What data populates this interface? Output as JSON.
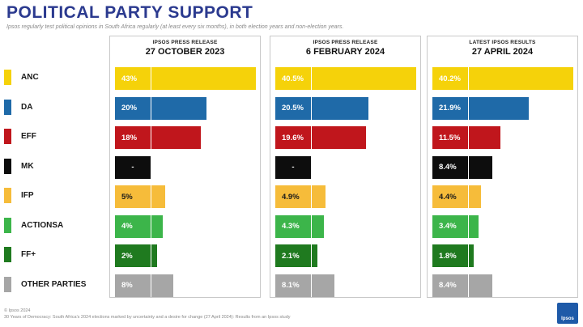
{
  "title": "POLITICAL PARTY SUPPORT",
  "subtitle": "Ipsos regularly test political opinions in South Africa regularly (at least every six months), in both election years and non-election years.",
  "footer": {
    "copyright": "© Ipsos 2024",
    "source": "30 Years of Democracy: South Africa's 2024 elections marked by uncertainty and a desire for change (27 April 2024): Results from an Ipsos study"
  },
  "logo_text": "Ipsos",
  "colors": {
    "ANC": "#f5d20a",
    "DA": "#1f6aa8",
    "EFF": "#c0161c",
    "MK": "#0d0d0d",
    "IFP": "#f6bc3a",
    "ACTIONSA": "#3cb54a",
    "FF+": "#1f7a1f",
    "OTHER PARTIES": "#a6a6a6"
  },
  "chart_data": {
    "type": "bar",
    "categories": [
      "ANC",
      "DA",
      "EFF",
      "MK",
      "IFP",
      "ACTIONSA",
      "FF+",
      "OTHER PARTIES"
    ],
    "series": [
      {
        "kicker": "IPSOS PRESS RELEASE",
        "name": "27 OCTOBER 2023",
        "values": [
          43,
          20,
          18,
          null,
          5,
          4,
          2,
          8
        ],
        "labels": [
          "43%",
          "20%",
          "18%",
          "-",
          "5%",
          "4%",
          "2%",
          "8%"
        ]
      },
      {
        "kicker": "IPSOS PRESS RELEASE",
        "name": "6 FEBRUARY 2024",
        "values": [
          40.5,
          20.5,
          19.6,
          null,
          4.9,
          4.3,
          2.1,
          8.1
        ],
        "labels": [
          "40.5%",
          "20.5%",
          "19.6%",
          "-",
          "4.9%",
          "4.3%",
          "2.1%",
          "8.1%"
        ]
      },
      {
        "kicker": "LATEST IPSOS RESULTS",
        "name": "27 APRIL 2024",
        "values": [
          40.2,
          21.9,
          11.5,
          8.4,
          4.4,
          3.4,
          1.8,
          8.4
        ],
        "labels": [
          "40.2%",
          "21.9%",
          "11.5%",
          "8.4%",
          "4.4%",
          "3.4%",
          "1.8%",
          "8.4%"
        ]
      }
    ]
  }
}
